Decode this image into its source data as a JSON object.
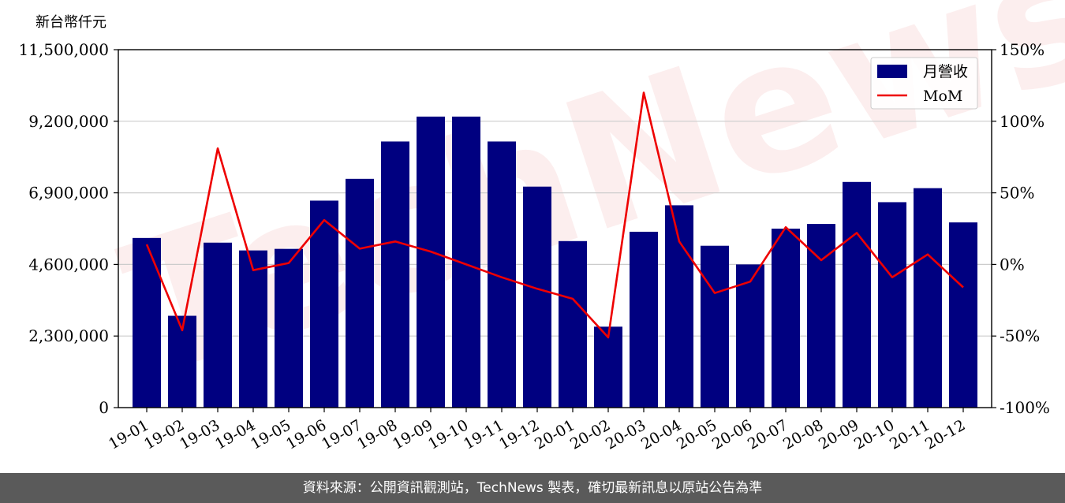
{
  "chart_data": {
    "type": "bar",
    "y_unit_label": "新台幣仟元",
    "categories": [
      "19-01",
      "19-02",
      "19-03",
      "19-04",
      "19-05",
      "19-06",
      "19-07",
      "19-08",
      "19-09",
      "19-10",
      "19-11",
      "19-12",
      "20-01",
      "20-02",
      "20-03",
      "20-04",
      "20-05",
      "20-06",
      "20-07",
      "20-08",
      "20-09",
      "20-10",
      "20-11",
      "20-12"
    ],
    "series": [
      {
        "name": "月營收",
        "kind": "bar",
        "axis": "left",
        "color": "#000080",
        "values": [
          5450000,
          2950000,
          5300000,
          5050000,
          5100000,
          6650000,
          7350000,
          8550000,
          9350000,
          9350000,
          8550000,
          7100000,
          5350000,
          2600000,
          5650000,
          6500000,
          5200000,
          4600000,
          5750000,
          5900000,
          7250000,
          6600000,
          7050000,
          5950000
        ]
      },
      {
        "name": "MoM",
        "kind": "line",
        "axis": "right",
        "color": "#ee0000",
        "values": [
          14,
          -46,
          81,
          -4,
          1,
          31,
          11,
          16,
          9,
          0,
          -9,
          -17,
          -24,
          -51,
          120,
          16,
          -20,
          -12,
          26,
          3,
          22,
          -9,
          7,
          -16
        ]
      }
    ],
    "left_axis": {
      "ylim": [
        0,
        11500000
      ],
      "ticks": [
        "0",
        "2,300,000",
        "4,600,000",
        "6,900,000",
        "9,200,000",
        "11,500,000"
      ],
      "tick_values": [
        0,
        2300000,
        4600000,
        6900000,
        9200000,
        11500000
      ]
    },
    "right_axis": {
      "ylim": [
        -100,
        150
      ],
      "ticks": [
        "-100%",
        "-50%",
        "0%",
        "50%",
        "100%",
        "150%"
      ],
      "tick_values": [
        -100,
        -50,
        0,
        50,
        100,
        150
      ]
    },
    "grid": true,
    "legend_position": "top-right"
  },
  "watermark_text": "TechNews",
  "footer_text": "資料來源：公開資訊觀測站，TechNews 製表，確切最新訊息以原站公告為準"
}
